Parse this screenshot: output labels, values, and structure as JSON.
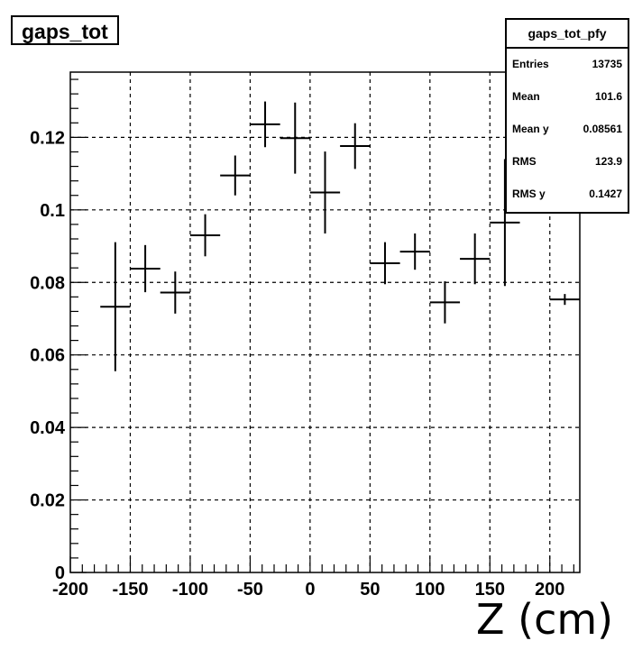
{
  "chart_data": {
    "type": "scatter",
    "title": "gaps_tot",
    "xlabel": "Z (cm)",
    "ylabel": "",
    "xlim": [
      -200,
      225
    ],
    "ylim": [
      0,
      0.138
    ],
    "grid": true,
    "x_ticks": [
      -200,
      -150,
      -100,
      -50,
      0,
      50,
      100,
      150,
      200
    ],
    "x_tick_labels": [
      "-200",
      "-150",
      "-100",
      "-50",
      "0",
      "50",
      "100",
      "150",
      "200"
    ],
    "y_ticks": [
      0,
      0.02,
      0.04,
      0.06,
      0.08,
      0.1,
      0.12
    ],
    "y_tick_labels": [
      "0",
      "0.02",
      "0.04",
      "0.06",
      "0.08",
      "0.1",
      "0.12"
    ],
    "series": [
      {
        "points": [
          {
            "x": -162.5,
            "y": 0.0733,
            "xerr": 12.5,
            "yerr": 0.0178
          },
          {
            "x": -137.5,
            "y": 0.0838,
            "xerr": 12.5,
            "yerr": 0.0065
          },
          {
            "x": -112.5,
            "y": 0.0772,
            "xerr": 12.5,
            "yerr": 0.0058
          },
          {
            "x": -87.5,
            "y": 0.093,
            "xerr": 12.5,
            "yerr": 0.0058
          },
          {
            "x": -62.5,
            "y": 0.1095,
            "xerr": 12.5,
            "yerr": 0.0055
          },
          {
            "x": -37.5,
            "y": 0.1236,
            "xerr": 12.5,
            "yerr": 0.0063
          },
          {
            "x": -12.5,
            "y": 0.1198,
            "xerr": 12.5,
            "yerr": 0.0098
          },
          {
            "x": 12.5,
            "y": 0.1048,
            "xerr": 12.5,
            "yerr": 0.0113
          },
          {
            "x": 37.5,
            "y": 0.1176,
            "xerr": 12.5,
            "yerr": 0.0063
          },
          {
            "x": 62.5,
            "y": 0.0853,
            "xerr": 12.5,
            "yerr": 0.0058
          },
          {
            "x": 87.5,
            "y": 0.0885,
            "xerr": 12.5,
            "yerr": 0.005
          },
          {
            "x": 112.5,
            "y": 0.0745,
            "xerr": 12.5,
            "yerr": 0.0058
          },
          {
            "x": 137.5,
            "y": 0.0865,
            "xerr": 12.5,
            "yerr": 0.007
          },
          {
            "x": 162.5,
            "y": 0.0965,
            "xerr": 12.5,
            "yerr": 0.0175
          },
          {
            "x": 212.5,
            "y": 0.0753,
            "xerr": 12.5,
            "yerr": 0.0015
          }
        ]
      }
    ]
  },
  "stats_box": {
    "title": "gaps_tot_pfy",
    "rows": [
      {
        "label": "Entries",
        "value": "13735"
      },
      {
        "label": "Mean",
        "value": "101.6"
      },
      {
        "label": "Mean y",
        "value": "0.08561"
      },
      {
        "label": "RMS",
        "value": "123.9"
      },
      {
        "label": "RMS y",
        "value": "0.1427"
      }
    ]
  },
  "colors": {
    "marker": "#000000",
    "grid": "#000000",
    "background": "#ffffff"
  }
}
